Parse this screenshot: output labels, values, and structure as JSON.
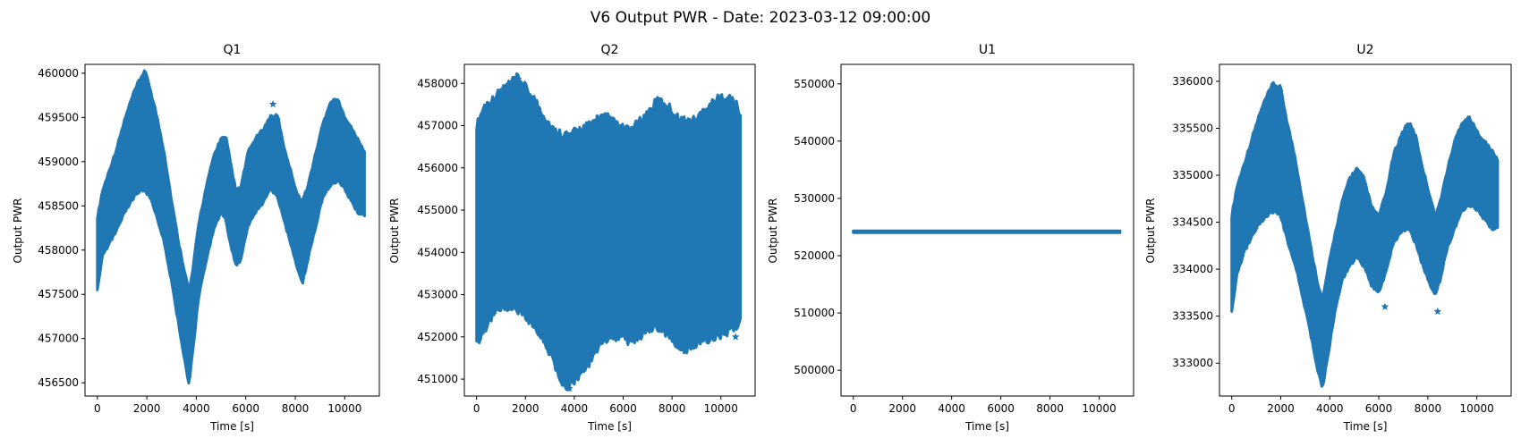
{
  "figure": {
    "suptitle": "V6 Output PWR - Date: 2023-03-12 09:00:00",
    "marker_color": "#1f77b4"
  },
  "chart_data": [
    {
      "type": "scatter",
      "title": "Q1",
      "xlabel": "Time [s]",
      "ylabel": "Output PWR",
      "xlim": [
        -500,
        11400
      ],
      "ylim": [
        456350,
        460100
      ],
      "xticks": [
        0,
        2000,
        4000,
        6000,
        8000,
        10000
      ],
      "yticks": [
        456500,
        457000,
        457500,
        458000,
        458500,
        459000,
        459500,
        460000
      ],
      "grid": false,
      "series": [
        {
          "marker": "star",
          "x": [
            0,
            200,
            500,
            800,
            1100,
            1400,
            1700,
            1900,
            2100,
            2400,
            2700,
            3000,
            3300,
            3600,
            3700,
            3850,
            4100,
            4400,
            4700,
            5000,
            5200,
            5400,
            5600,
            5800,
            6100,
            6400,
            6700,
            7000,
            7300,
            7500,
            7800,
            8100,
            8300,
            8500,
            8800,
            9100,
            9400,
            9700,
            9900,
            10200,
            10500,
            10800
          ],
          "center": [
            457950,
            458300,
            458500,
            458700,
            458950,
            459150,
            459300,
            459350,
            459250,
            458950,
            458600,
            458100,
            457600,
            457150,
            457000,
            457300,
            457900,
            458300,
            458650,
            458850,
            458800,
            458500,
            458250,
            458300,
            458700,
            458850,
            458950,
            459100,
            459050,
            458800,
            458500,
            458200,
            458100,
            458300,
            458650,
            459000,
            459200,
            459250,
            459150,
            459000,
            458850,
            458750
          ],
          "spread": [
            400,
            350,
            400,
            450,
            500,
            550,
            600,
            650,
            600,
            550,
            500,
            450,
            450,
            500,
            500,
            450,
            400,
            400,
            400,
            400,
            450,
            450,
            400,
            400,
            400,
            400,
            400,
            400,
            450,
            400,
            400,
            400,
            450,
            400,
            400,
            400,
            450,
            450,
            400,
            400,
            400,
            350
          ],
          "outliers": [
            [
              7100,
              459650
            ]
          ]
        }
      ]
    },
    {
      "type": "scatter",
      "title": "Q2",
      "xlabel": "Time [s]",
      "ylabel": "Output PWR",
      "xlim": [
        -500,
        11400
      ],
      "ylim": [
        450600,
        458450
      ],
      "xticks": [
        0,
        2000,
        4000,
        6000,
        8000,
        10000
      ],
      "yticks": [
        451000,
        452000,
        453000,
        454000,
        455000,
        456000,
        457000,
        458000
      ],
      "grid": false,
      "series": [
        {
          "marker": "star",
          "x": [
            0,
            300,
            700,
            1100,
            1500,
            1700,
            2000,
            2400,
            2800,
            3200,
            3600,
            3800,
            4200,
            4600,
            5000,
            5400,
            5800,
            6200,
            6600,
            7000,
            7400,
            7800,
            8200,
            8600,
            9000,
            9400,
            9800,
            10200,
            10600,
            10800
          ],
          "center": [
            454400,
            454800,
            455100,
            455300,
            455400,
            455400,
            455200,
            454900,
            454500,
            454100,
            453800,
            453800,
            454000,
            454200,
            454500,
            454600,
            454500,
            454400,
            454500,
            454700,
            454900,
            454800,
            454500,
            454400,
            454500,
            454700,
            454800,
            454900,
            454900,
            454800
          ],
          "spread": [
            2500,
            2550,
            2450,
            2500,
            2550,
            2650,
            2600,
            2600,
            2600,
            2650,
            2900,
            2850,
            2800,
            2700,
            2600,
            2500,
            2400,
            2400,
            2450,
            2500,
            2600,
            2600,
            2600,
            2600,
            2550,
            2650,
            2700,
            2700,
            2550,
            2300
          ],
          "outliers": [
            [
              1700,
              458100
            ],
            [
              7450,
              457600
            ],
            [
              10600,
              452000
            ],
            [
              3800,
              450780
            ]
          ]
        }
      ]
    },
    {
      "type": "scatter",
      "title": "U1",
      "xlabel": "Time [s]",
      "ylabel": "Output PWR",
      "xlim": [
        -500,
        11400
      ],
      "ylim": [
        495500,
        553400
      ],
      "xticks": [
        0,
        2000,
        4000,
        6000,
        8000,
        10000
      ],
      "yticks": [
        500000,
        510000,
        520000,
        530000,
        540000,
        550000
      ],
      "grid": false,
      "series": [
        {
          "marker": "star",
          "x": [
            0,
            10850
          ],
          "center": [
            524180,
            524180
          ],
          "spread": [
            150,
            150
          ],
          "outliers": []
        }
      ]
    },
    {
      "type": "scatter",
      "title": "U2",
      "xlabel": "Time [s]",
      "ylabel": "Output PWR",
      "xlim": [
        -500,
        11400
      ],
      "ylim": [
        332650,
        336180
      ],
      "xticks": [
        0,
        2000,
        4000,
        6000,
        8000,
        10000
      ],
      "yticks": [
        333000,
        333500,
        334000,
        334500,
        335000,
        335500,
        336000
      ],
      "grid": false,
      "series": [
        {
          "marker": "star",
          "x": [
            0,
            200,
            500,
            800,
            1100,
            1400,
            1700,
            2000,
            2300,
            2600,
            2900,
            3200,
            3500,
            3700,
            3900,
            4200,
            4500,
            4800,
            5100,
            5400,
            5700,
            6000,
            6300,
            6600,
            6900,
            7200,
            7500,
            7800,
            8100,
            8300,
            8500,
            8800,
            9100,
            9400,
            9700,
            10000,
            10300,
            10600,
            10850
          ],
          "center": [
            334050,
            334400,
            334650,
            334850,
            335050,
            335200,
            335300,
            335250,
            334900,
            334600,
            334200,
            333800,
            333400,
            333200,
            333500,
            333950,
            334300,
            334500,
            334600,
            334500,
            334250,
            334150,
            334400,
            334750,
            334900,
            335000,
            334850,
            334550,
            334300,
            334150,
            334300,
            334650,
            334900,
            335100,
            335150,
            335050,
            334950,
            334850,
            334800
          ],
          "spread": [
            500,
            450,
            450,
            500,
            550,
            600,
            650,
            650,
            600,
            550,
            500,
            450,
            450,
            450,
            450,
            400,
            400,
            450,
            450,
            450,
            400,
            400,
            400,
            450,
            500,
            550,
            550,
            500,
            450,
            400,
            400,
            400,
            450,
            450,
            450,
            400,
            400,
            400,
            350
          ],
          "outliers": [
            [
              8400,
              333550
            ],
            [
              6250,
              333600
            ]
          ]
        }
      ]
    }
  ]
}
